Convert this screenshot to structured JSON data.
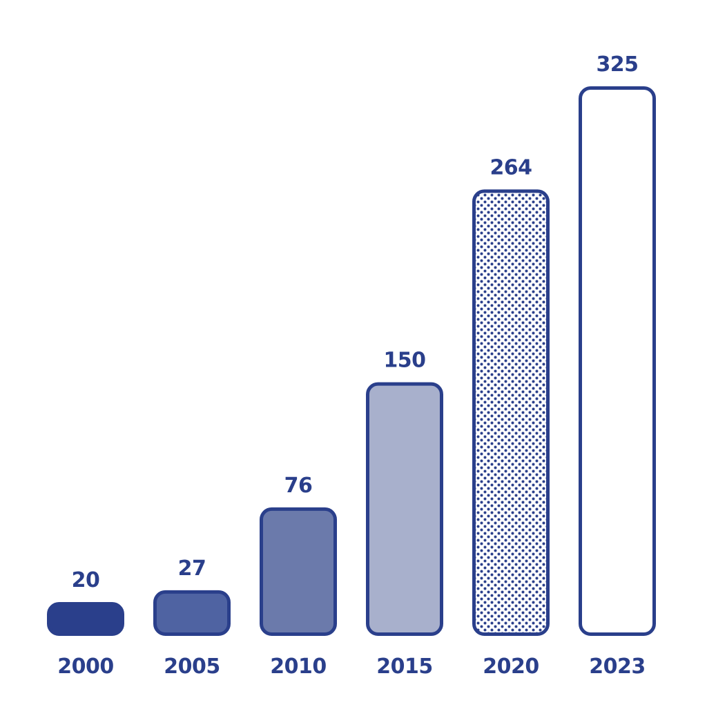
{
  "chart_data": {
    "type": "bar",
    "categories": [
      "2000",
      "2005",
      "2010",
      "2015",
      "2020",
      "2023"
    ],
    "values": [
      20,
      27,
      76,
      150,
      264,
      325
    ],
    "value_labels": [
      "20",
      "27",
      "76",
      "150",
      "264",
      "325"
    ],
    "title": "",
    "xlabel": "",
    "ylabel": "",
    "ylim": [
      0,
      325
    ],
    "grid": false,
    "legend": "none",
    "colors": {
      "outline": "#2a3f8b",
      "text": "#2a3f8b",
      "fills": [
        "#2a3f8b",
        "#4f63a2",
        "#6b7aab",
        "#a8b0cc",
        "dots",
        "#ffffff"
      ]
    }
  }
}
